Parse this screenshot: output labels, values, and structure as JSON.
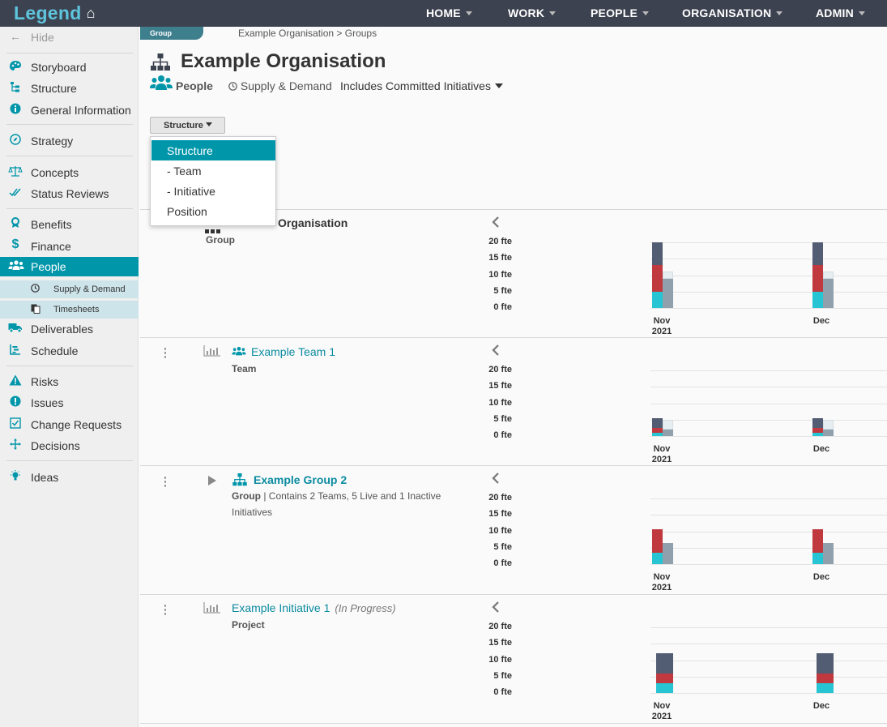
{
  "topbar": {
    "logo": "Legend",
    "nav": [
      "HOME",
      "WORK",
      "PEOPLE",
      "ORGANISATION",
      "ADMIN"
    ]
  },
  "sidebar": {
    "hide_label": "Hide",
    "items": [
      {
        "label": "Storyboard",
        "icon": "palette-icon"
      },
      {
        "label": "Structure",
        "icon": "structure-icon"
      },
      {
        "label": "General Information",
        "icon": "info-icon"
      },
      {
        "label": "Strategy",
        "icon": "compass-icon"
      },
      {
        "label": "Concepts",
        "icon": "scales-icon"
      },
      {
        "label": "Status Reviews",
        "icon": "double-check-icon"
      },
      {
        "label": "Benefits",
        "icon": "award-icon"
      },
      {
        "label": "Finance",
        "icon": "dollar-icon"
      },
      {
        "label": "People",
        "icon": "people-icon"
      },
      {
        "label": "Deliverables",
        "icon": "truck-icon"
      },
      {
        "label": "Schedule",
        "icon": "schedule-icon"
      },
      {
        "label": "Risks",
        "icon": "warning-icon"
      },
      {
        "label": "Issues",
        "icon": "exclamation-icon"
      },
      {
        "label": "Change Requests",
        "icon": "change-icon"
      },
      {
        "label": "Decisions",
        "icon": "decisions-icon"
      },
      {
        "label": "Ideas",
        "icon": "lightbulb-icon"
      }
    ],
    "sub_items": [
      {
        "label": "Supply & Demand",
        "icon": "clock-icon"
      },
      {
        "label": "Timesheets",
        "icon": "timesheet-icon"
      }
    ]
  },
  "header": {
    "tab_label": "Group",
    "breadcrumb": "Example Organisation > Groups",
    "title": "Example Organisation",
    "section": "People",
    "subsection": "Supply & Demand",
    "filter": "Includes Committed Initiatives"
  },
  "structure_button": "Structure",
  "dropdown": [
    "Structure",
    "- Team",
    "- Initiative",
    "Position"
  ],
  "rows": [
    {
      "name": "Organisation",
      "type": "Group",
      "detail": "",
      "status": ""
    },
    {
      "name": "Example Team 1",
      "type": "Team",
      "detail": "",
      "status": ""
    },
    {
      "name": "Example Group 2",
      "type": "Group",
      "detail": " | Contains 2 Teams, 5 Live and 1 Inactive",
      "detail2": "Initiatives",
      "status": ""
    },
    {
      "name": "Example Initiative 1",
      "type": "Project",
      "detail": "",
      "status": "(In Progress)"
    }
  ],
  "chart_data": [
    {
      "type": "bar",
      "categories": [
        "Nov 2021",
        "Dec"
      ],
      "yticks": [
        "20 fte",
        "15 fte",
        "10 fte",
        "5 fte",
        "0 fte"
      ],
      "ylim": [
        0,
        20
      ],
      "colors": {
        "dark": "#525c72",
        "red": "#c0393e",
        "cyan": "#27c4d4",
        "grey": "#90a1ad",
        "light": "#e6eef1"
      },
      "series": [
        {
          "values_stacked": [
            [
              5,
              8,
              7
            ],
            [
              5,
              8,
              7
            ]
          ]
        },
        {
          "values_other": [
            [
              9,
              2
            ],
            [
              9,
              2
            ]
          ]
        }
      ]
    },
    {
      "type": "bar",
      "categories": [
        "Nov 2021",
        "Dec"
      ],
      "yticks": [
        "20 fte",
        "15 fte",
        "10 fte",
        "5 fte",
        "0 fte"
      ],
      "ylim": [
        0,
        20
      ],
      "series": [
        {
          "values_stacked": [
            [
              1,
              1.5,
              3
            ],
            [
              1,
              1.5,
              3
            ]
          ]
        },
        {
          "values_other": [
            [
              2,
              3
            ],
            [
              2,
              3
            ]
          ]
        }
      ]
    },
    {
      "type": "bar",
      "categories": [
        "Nov 2021",
        "Dec"
      ],
      "yticks": [
        "20 fte",
        "15 fte",
        "10 fte",
        "5 fte",
        "0 fte"
      ],
      "ylim": [
        0,
        20
      ],
      "series": [
        {
          "values_stacked": [
            [
              3.5,
              7,
              0
            ],
            [
              3.5,
              7,
              0
            ]
          ]
        },
        {
          "values_other": [
            [
              6.5,
              0
            ],
            [
              6.5,
              0
            ]
          ]
        }
      ]
    },
    {
      "type": "bar",
      "categories": [
        "Nov 2021",
        "Dec"
      ],
      "yticks": [
        "20 fte",
        "15 fte",
        "10 fte",
        "5 fte",
        "0 fte"
      ],
      "ylim": [
        0,
        20
      ],
      "series": [
        {
          "values_stacked": [
            [
              3,
              3,
              6
            ],
            [
              3,
              3,
              6
            ]
          ]
        }
      ]
    }
  ]
}
